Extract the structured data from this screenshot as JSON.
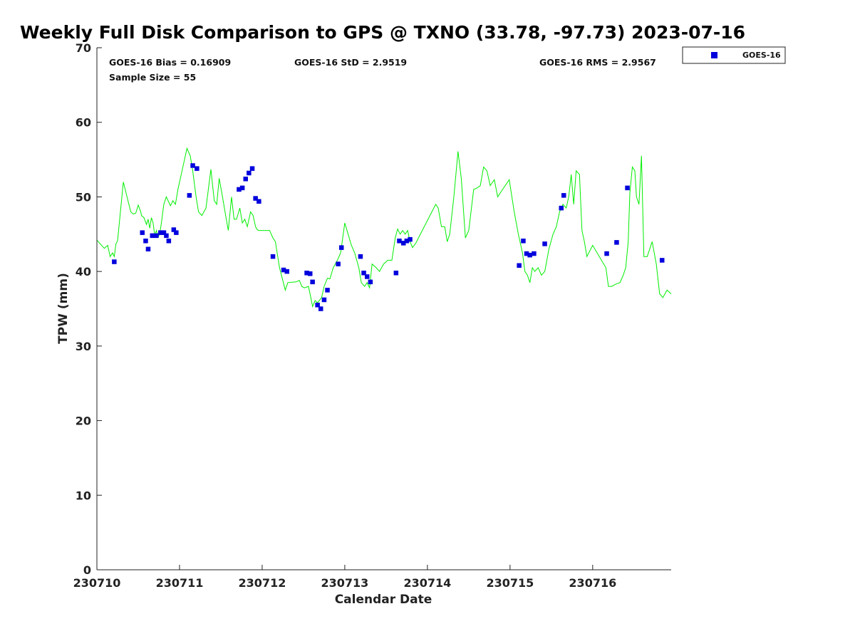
{
  "chart_data": {
    "type": "scatter",
    "title": "Weekly Full Disk Comparison to GPS @ TXNO (33.78, -97.73) 2023-07-16",
    "xlabel": "Calendar Date",
    "ylabel": "TPW (mm)",
    "xlim": [
      0,
      6.95
    ],
    "ylim": [
      0,
      70
    ],
    "x_ticks": [
      {
        "value": 0,
        "label": "230710"
      },
      {
        "value": 1,
        "label": "230711"
      },
      {
        "value": 2,
        "label": "230712"
      },
      {
        "value": 3,
        "label": "230713"
      },
      {
        "value": 4,
        "label": "230714"
      },
      {
        "value": 5,
        "label": "230715"
      },
      {
        "value": 6,
        "label": "230716"
      }
    ],
    "y_ticks": [
      0,
      10,
      20,
      30,
      40,
      50,
      60,
      70
    ],
    "grid": false,
    "stats": {
      "bias": "GOES-16 Bias = 0.16909",
      "std": "GOES-16 StD = 2.9519",
      "rms": "GOES-16 RMS = 2.9567",
      "sample": "Sample Size = 55"
    },
    "legend": {
      "position": "top-right",
      "label": "GOES-16"
    },
    "colors": {
      "goes": "#0000dd",
      "gps": "#00ee00"
    },
    "series": [
      {
        "name": "GPS",
        "kind": "line",
        "x": [
          0.0,
          0.09,
          0.13,
          0.16,
          0.19,
          0.21,
          0.23,
          0.25,
          0.32,
          0.41,
          0.44,
          0.47,
          0.5,
          0.53,
          0.54,
          0.57,
          0.6,
          0.62,
          0.64,
          0.66,
          0.68,
          0.7,
          0.72,
          0.74,
          0.76,
          0.78,
          0.81,
          0.84,
          0.89,
          0.92,
          0.95,
          0.98,
          1.03,
          1.09,
          1.13,
          1.16,
          1.2,
          1.23,
          1.27,
          1.32,
          1.38,
          1.42,
          1.45,
          1.48,
          1.52,
          1.55,
          1.59,
          1.63,
          1.66,
          1.69,
          1.73,
          1.76,
          1.79,
          1.82,
          1.86,
          1.89,
          1.92,
          1.94,
          1.96,
          2.0,
          2.09,
          2.13,
          2.16,
          2.21,
          2.28,
          2.31,
          2.41,
          2.45,
          2.48,
          2.51,
          2.56,
          2.58,
          2.61,
          2.64,
          2.67,
          2.72,
          2.75,
          2.79,
          2.82,
          2.86,
          2.91,
          2.95,
          3.0,
          3.04,
          3.08,
          3.12,
          3.17,
          3.2,
          3.24,
          3.27,
          3.3,
          3.33,
          3.38,
          3.42,
          3.47,
          3.52,
          3.57,
          3.61,
          3.64,
          3.67,
          3.7,
          3.73,
          3.76,
          3.79,
          3.82,
          3.86,
          4.1,
          4.13,
          4.17,
          4.21,
          4.24,
          4.27,
          4.32,
          4.37,
          4.41,
          4.46,
          4.5,
          4.56,
          4.6,
          4.64,
          4.68,
          4.72,
          4.76,
          4.81,
          4.85,
          4.91,
          4.99,
          5.05,
          5.1,
          5.15,
          5.18,
          5.21,
          5.24,
          5.27,
          5.3,
          5.34,
          5.38,
          5.42,
          5.47,
          5.52,
          5.56,
          5.6,
          5.64,
          5.68,
          5.71,
          5.74,
          5.77,
          5.8,
          5.84,
          5.87,
          5.9,
          5.93,
          6.0,
          6.16,
          6.19,
          6.23,
          6.28,
          6.33,
          6.37,
          6.4,
          6.43,
          6.45,
          6.48,
          6.51,
          6.53,
          6.56,
          6.59,
          6.62,
          6.66,
          6.72,
          6.77,
          6.81,
          6.85,
          6.9,
          6.95
        ],
        "y": [
          44.2,
          43.1,
          43.5,
          42.0,
          42.5,
          42.0,
          43.7,
          44.1,
          52.0,
          48.0,
          47.7,
          47.8,
          48.9,
          48.0,
          47.5,
          47.2,
          46.3,
          47.0,
          45.8,
          47.2,
          46.5,
          44.8,
          45.5,
          44.6,
          45.0,
          46.5,
          49.0,
          50.0,
          48.8,
          49.5,
          49.0,
          51.0,
          53.5,
          56.5,
          55.5,
          53.5,
          50.0,
          48.0,
          47.5,
          48.5,
          53.7,
          49.5,
          49.0,
          52.5,
          50.0,
          48.0,
          45.5,
          50.0,
          47.0,
          47.0,
          48.5,
          46.5,
          47.0,
          46.0,
          48.0,
          47.5,
          46.0,
          45.6,
          45.5,
          45.5,
          45.5,
          44.5,
          44.0,
          40.5,
          37.5,
          38.5,
          38.6,
          38.8,
          38.0,
          37.8,
          38.0,
          37.0,
          35.3,
          36.1,
          35.8,
          36.5,
          38.0,
          39.1,
          39.0,
          40.5,
          41.5,
          42.5,
          46.5,
          45.0,
          43.5,
          42.5,
          40.5,
          38.5,
          38.0,
          38.5,
          37.8,
          41.0,
          40.5,
          40.0,
          41.0,
          41.5,
          41.5,
          44.5,
          45.7,
          45.0,
          45.5,
          45.0,
          45.5,
          44.0,
          43.2,
          43.8,
          49.0,
          48.5,
          46.0,
          46.0,
          44.0,
          45.0,
          50.0,
          56.1,
          52.5,
          44.5,
          45.5,
          51.0,
          51.2,
          51.5,
          54.0,
          53.5,
          51.5,
          52.3,
          50.0,
          51.0,
          52.3,
          48.0,
          45.0,
          42.5,
          40.0,
          39.5,
          38.5,
          40.5,
          40.0,
          40.5,
          39.5,
          40.0,
          43.0,
          45.0,
          46.0,
          48.0,
          49.0,
          48.5,
          50.0,
          53.0,
          49.0,
          53.5,
          53.0,
          45.5,
          44.0,
          42.0,
          43.5,
          40.5,
          38.0,
          38.0,
          38.3,
          38.5,
          39.5,
          40.5,
          44.0,
          50.5,
          54.0,
          53.5,
          50.0,
          49.0,
          55.5,
          42.0,
          42.0,
          44.0,
          41.0,
          37.0,
          36.5,
          37.5,
          37.0
        ]
      },
      {
        "name": "GOES-16",
        "kind": "scatter",
        "x": [
          0.21,
          0.55,
          0.59,
          0.62,
          0.67,
          0.72,
          0.77,
          0.81,
          0.84,
          0.87,
          0.93,
          0.96,
          1.12,
          1.16,
          1.21,
          1.72,
          1.76,
          1.8,
          1.84,
          1.88,
          1.92,
          1.96,
          2.13,
          2.26,
          2.3,
          2.54,
          2.58,
          2.61,
          2.67,
          2.71,
          2.75,
          2.79,
          2.92,
          2.96,
          3.19,
          3.23,
          3.27,
          3.31,
          3.62,
          3.66,
          3.71,
          3.75,
          3.79,
          5.11,
          5.16,
          5.2,
          5.24,
          5.29,
          5.42,
          5.62,
          5.65,
          6.17,
          6.29,
          6.42,
          6.84
        ],
        "y": [
          41.3,
          45.2,
          44.1,
          43.0,
          44.8,
          44.8,
          45.2,
          45.2,
          44.8,
          44.1,
          45.6,
          45.2,
          50.2,
          54.2,
          53.8,
          51.0,
          51.2,
          52.4,
          53.2,
          53.8,
          49.8,
          49.4,
          42.0,
          40.2,
          40.0,
          39.8,
          39.7,
          38.6,
          35.5,
          35.0,
          36.2,
          37.5,
          41.0,
          43.2,
          42.0,
          39.8,
          39.3,
          38.6,
          39.8,
          44.1,
          43.8,
          44.1,
          44.3,
          40.8,
          44.1,
          42.4,
          42.2,
          42.4,
          43.7,
          48.5,
          50.2,
          42.4,
          43.9,
          51.2,
          41.5
        ]
      }
    ]
  }
}
